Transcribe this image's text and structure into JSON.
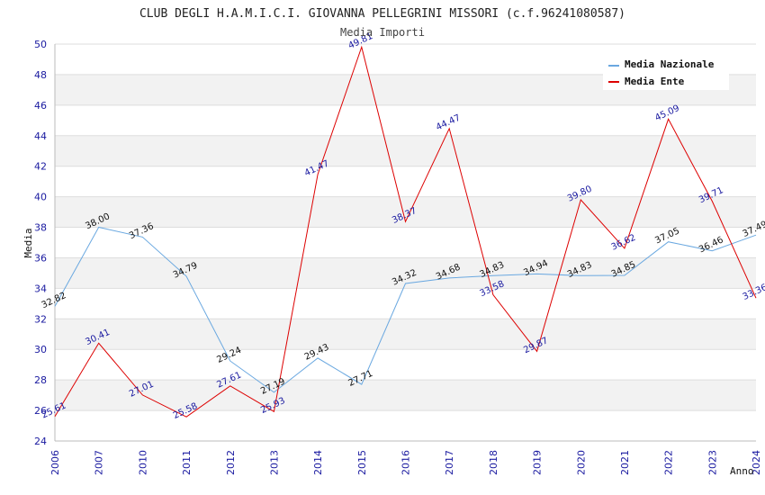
{
  "chart_data": {
    "type": "line",
    "title": "CLUB DEGLI H.A.M.I.C.I. GIOVANNA PELLEGRINI MISSORI (c.f.96241080587)",
    "subtitle": "Media Importi",
    "xlabel": "Anno",
    "ylabel": "Media",
    "ylim": [
      24,
      50
    ],
    "yticks": [
      "24",
      "26",
      "28",
      "30",
      "32",
      "34",
      "36",
      "38",
      "40",
      "42",
      "44",
      "46",
      "48",
      "50"
    ],
    "x": [
      "2006",
      "2007",
      "2010",
      "2011",
      "2012",
      "2013",
      "2014",
      "2015",
      "2016",
      "2017",
      "2018",
      "2019",
      "2020",
      "2021",
      "2022",
      "2023",
      "2024"
    ],
    "grid": "horizontal bands",
    "legend_position": "top-right",
    "series": [
      {
        "name": "Media Nazionale",
        "color": "#6aa8e0",
        "label_color": "#111111",
        "values": [
          32.82,
          38.0,
          37.36,
          34.79,
          29.24,
          27.19,
          29.43,
          27.71,
          34.32,
          34.68,
          34.83,
          34.94,
          34.83,
          34.85,
          37.05,
          36.46,
          37.49
        ],
        "labels": [
          "32.82",
          "38.00",
          "37.36",
          "34.79",
          "29.24",
          "27.19",
          "29.43",
          "27.71",
          "34.32",
          "34.68",
          "34.83",
          "34.94",
          "34.83",
          "34.85",
          "37.05",
          "36.46",
          "37.49"
        ]
      },
      {
        "name": "Media Ente",
        "color": "#dd0000",
        "label_color": "#1a1aa0",
        "values": [
          25.61,
          30.41,
          27.01,
          25.58,
          27.61,
          25.93,
          41.47,
          49.81,
          38.37,
          44.47,
          33.58,
          29.87,
          39.8,
          36.62,
          45.09,
          39.71,
          33.36
        ],
        "labels": [
          "25.61",
          "30.41",
          "27.01",
          "25.58",
          "27.61",
          "25.93",
          "41.47",
          "49.81",
          "38.37",
          "44.47",
          "33.58",
          "29.87",
          "39.80",
          "36.62",
          "45.09",
          "39.71",
          "33.36"
        ]
      }
    ]
  }
}
